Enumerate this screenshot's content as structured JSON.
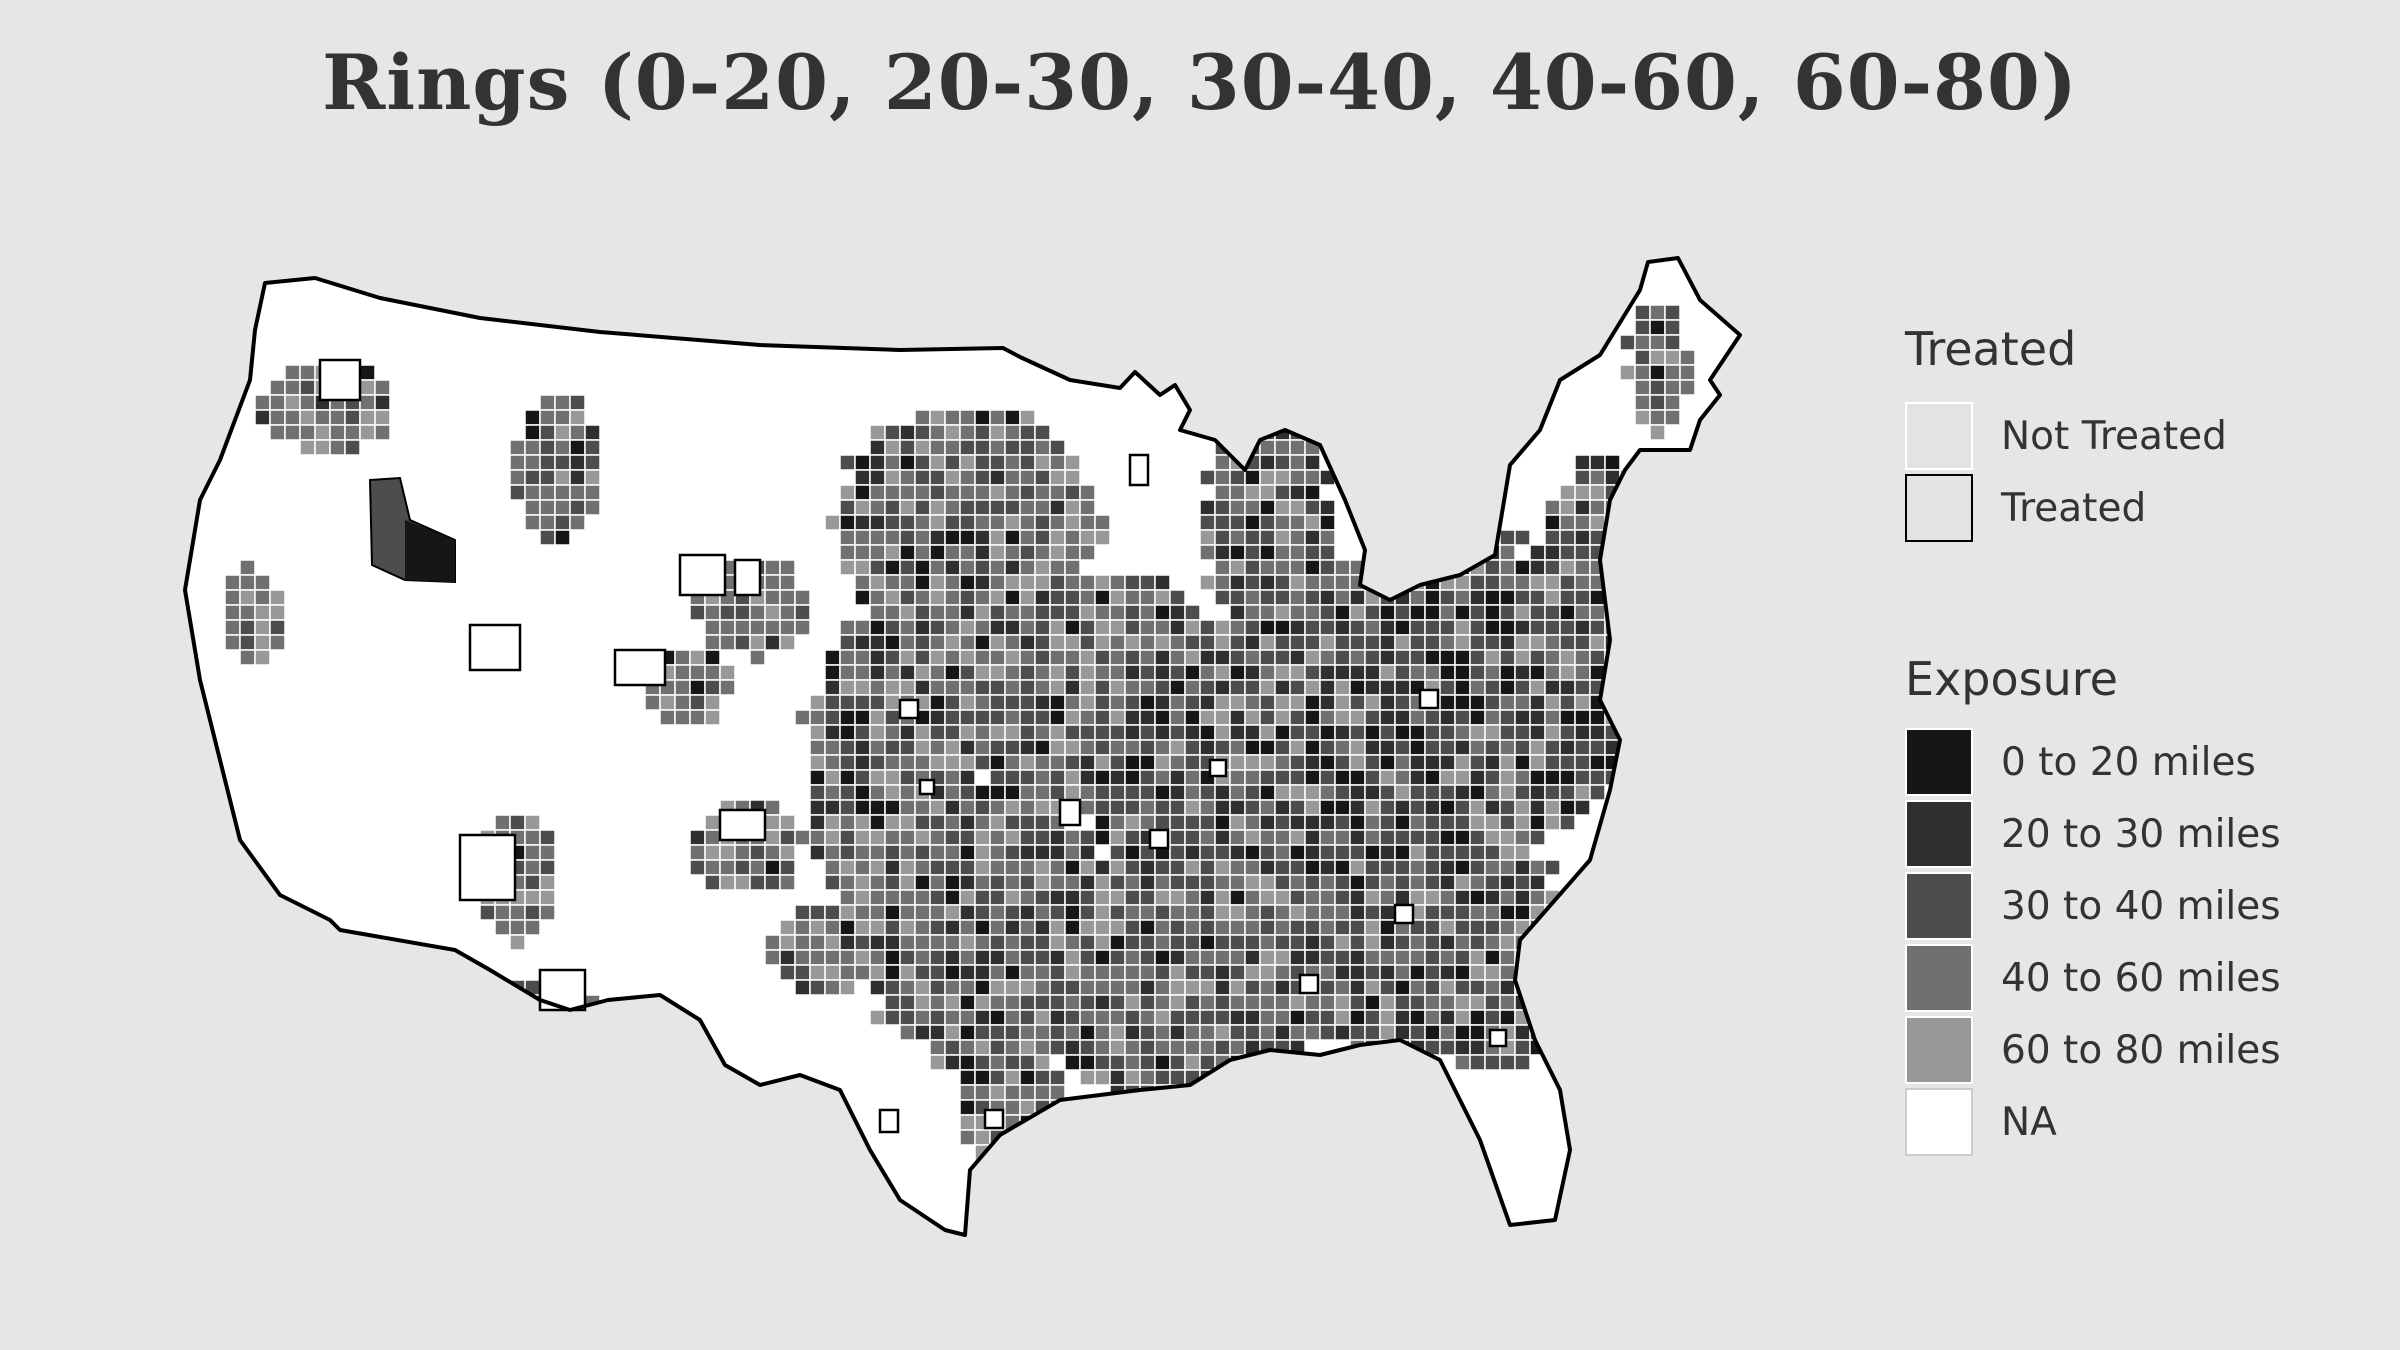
{
  "title": "Rings (0-20, 20-30, 30-40, 40-60, 60-80)",
  "colors": {
    "background": "#e6e6e6",
    "map_fill": "#ffffff",
    "outline": "#000000",
    "county_border": "#ffffff",
    "text": "#333333"
  },
  "legend_treated": {
    "title": "Treated",
    "items": [
      {
        "label": "Not Treated",
        "fill": "#e3e3e3",
        "outline": "#ffffff"
      },
      {
        "label": "Treated",
        "fill": "#e3e3e3",
        "outline": "#000000"
      }
    ]
  },
  "legend_exposure": {
    "title": "Exposure",
    "items": [
      {
        "label": "0 to 20 miles",
        "color": "#161616"
      },
      {
        "label": "20 to 30 miles",
        "color": "#2f2f2f"
      },
      {
        "label": "30 to 40 miles",
        "color": "#4d4d4d"
      },
      {
        "label": "40 to 60 miles",
        "color": "#707070"
      },
      {
        "label": "60 to 80 miles",
        "color": "#989898"
      },
      {
        "label": "NA",
        "color": "#ffffff"
      }
    ]
  }
}
